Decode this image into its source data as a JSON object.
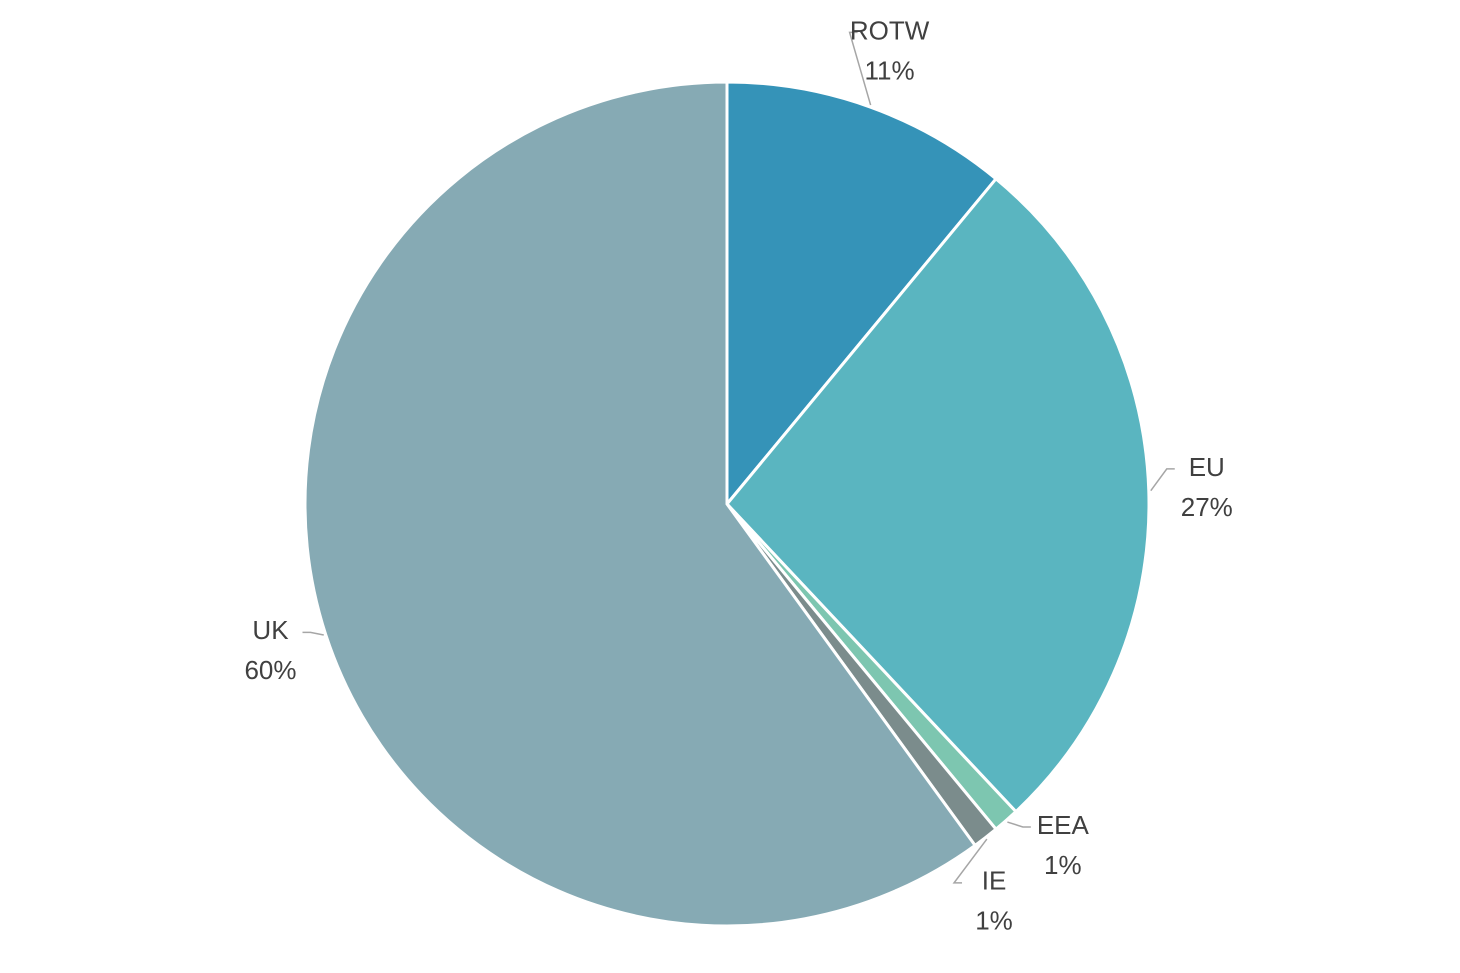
{
  "chart_data": {
    "type": "pie",
    "categories": [
      "ROTW",
      "EU",
      "EEA",
      "IE",
      "UK"
    ],
    "values": [
      11,
      27,
      1,
      1,
      60
    ],
    "value_labels": [
      "11%",
      "27%",
      "1%",
      "1%",
      "60%"
    ],
    "colors": [
      "#3593b8",
      "#5ab5c0",
      "#7dc6b0",
      "#7b8c8c",
      "#86aab4"
    ]
  }
}
